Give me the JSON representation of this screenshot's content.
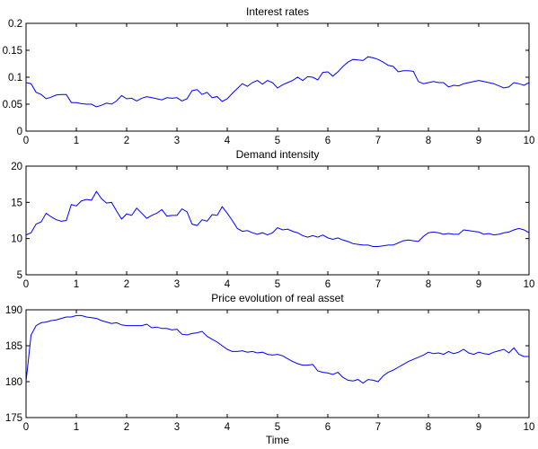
{
  "chart_data": [
    {
      "type": "line",
      "title": "Interest rates",
      "xlabel": "",
      "ylabel": "",
      "xlim": [
        0,
        10
      ],
      "ylim": [
        0,
        0.2
      ],
      "xticks": [
        0,
        1,
        2,
        3,
        4,
        5,
        6,
        7,
        8,
        9,
        10
      ],
      "yticks": [
        0,
        0.05,
        0.1,
        0.15,
        0.2
      ],
      "yticklabels": [
        "0",
        "0.05",
        "0.1",
        "0.15",
        "0.2"
      ],
      "series": [
        {
          "color": "#0000ff",
          "x": [
            0,
            0.1,
            0.2,
            0.3,
            0.4,
            0.5,
            0.6,
            0.7,
            0.8,
            0.9,
            1,
            1.1,
            1.2,
            1.3,
            1.4,
            1.5,
            1.6,
            1.7,
            1.8,
            1.9,
            2,
            2.1,
            2.2,
            2.3,
            2.4,
            2.5,
            2.6,
            2.7,
            2.8,
            2.9,
            3,
            3.1,
            3.2,
            3.3,
            3.4,
            3.5,
            3.6,
            3.7,
            3.8,
            3.9,
            4,
            4.1,
            4.2,
            4.3,
            4.4,
            4.5,
            4.6,
            4.7,
            4.8,
            4.9,
            5,
            5.1,
            5.2,
            5.3,
            5.4,
            5.5,
            5.6,
            5.7,
            5.8,
            5.9,
            6,
            6.1,
            6.2,
            6.3,
            6.4,
            6.5,
            6.6,
            6.7,
            6.8,
            6.9,
            7,
            7.1,
            7.2,
            7.3,
            7.4,
            7.5,
            7.6,
            7.7,
            7.8,
            7.9,
            8,
            8.1,
            8.2,
            8.3,
            8.4,
            8.5,
            8.6,
            8.7,
            8.8,
            8.9,
            9,
            9.1,
            9.2,
            9.3,
            9.4,
            9.5,
            9.6,
            9.7,
            9.8,
            9.9,
            10
          ],
          "values": [
            0.09,
            0.088,
            0.072,
            0.068,
            0.06,
            0.063,
            0.067,
            0.068,
            0.068,
            0.053,
            0.053,
            0.051,
            0.05,
            0.05,
            0.045,
            0.048,
            0.052,
            0.05,
            0.056,
            0.066,
            0.06,
            0.061,
            0.056,
            0.061,
            0.064,
            0.062,
            0.06,
            0.058,
            0.062,
            0.061,
            0.062,
            0.056,
            0.06,
            0.075,
            0.077,
            0.068,
            0.072,
            0.062,
            0.064,
            0.055,
            0.06,
            0.07,
            0.079,
            0.088,
            0.083,
            0.09,
            0.094,
            0.087,
            0.094,
            0.09,
            0.08,
            0.086,
            0.09,
            0.094,
            0.1,
            0.094,
            0.101,
            0.1,
            0.095,
            0.109,
            0.11,
            0.102,
            0.11,
            0.12,
            0.128,
            0.133,
            0.132,
            0.131,
            0.138,
            0.136,
            0.133,
            0.128,
            0.122,
            0.12,
            0.11,
            0.112,
            0.112,
            0.111,
            0.092,
            0.088,
            0.09,
            0.092,
            0.09,
            0.09,
            0.082,
            0.085,
            0.084,
            0.088,
            0.09,
            0.092,
            0.094,
            0.092,
            0.09,
            0.088,
            0.084,
            0.08,
            0.082,
            0.09,
            0.088,
            0.085,
            0.09
          ]
        }
      ]
    },
    {
      "type": "line",
      "title": "Demand intensity",
      "xlabel": "",
      "ylabel": "",
      "xlim": [
        0,
        10
      ],
      "ylim": [
        5,
        20
      ],
      "xticks": [
        0,
        1,
        2,
        3,
        4,
        5,
        6,
        7,
        8,
        9,
        10
      ],
      "yticks": [
        5,
        10,
        15,
        20
      ],
      "yticklabels": [
        "5",
        "10",
        "15",
        "20"
      ],
      "series": [
        {
          "color": "#0000ff",
          "x": [
            0,
            0.1,
            0.2,
            0.3,
            0.4,
            0.5,
            0.6,
            0.7,
            0.8,
            0.9,
            1,
            1.1,
            1.2,
            1.3,
            1.4,
            1.5,
            1.6,
            1.7,
            1.8,
            1.9,
            2,
            2.1,
            2.2,
            2.3,
            2.4,
            2.5,
            2.6,
            2.7,
            2.8,
            2.9,
            3,
            3.1,
            3.2,
            3.3,
            3.4,
            3.5,
            3.6,
            3.7,
            3.8,
            3.9,
            4,
            4.1,
            4.2,
            4.3,
            4.4,
            4.5,
            4.6,
            4.7,
            4.8,
            4.9,
            5,
            5.1,
            5.2,
            5.3,
            5.4,
            5.5,
            5.6,
            5.7,
            5.8,
            5.9,
            6,
            6.1,
            6.2,
            6.3,
            6.4,
            6.5,
            6.6,
            6.7,
            6.8,
            6.9,
            7,
            7.1,
            7.2,
            7.3,
            7.4,
            7.5,
            7.6,
            7.7,
            7.8,
            7.9,
            8,
            8.1,
            8.2,
            8.3,
            8.4,
            8.5,
            8.6,
            8.7,
            8.8,
            8.9,
            9,
            9.1,
            9.2,
            9.3,
            9.4,
            9.5,
            9.6,
            9.7,
            9.8,
            9.9,
            10
          ],
          "values": [
            10.5,
            10.8,
            12,
            12.3,
            13.5,
            13,
            12.6,
            12.4,
            12.5,
            14.7,
            14.5,
            15.2,
            15.4,
            15.3,
            16.5,
            15.5,
            14.9,
            15,
            13.8,
            12.7,
            13.4,
            13.2,
            14.2,
            13.5,
            12.8,
            13.2,
            13.5,
            14,
            13.1,
            13.2,
            13.2,
            14.1,
            13.7,
            12,
            11.8,
            12.6,
            12.4,
            13.3,
            13.2,
            14.4,
            13.5,
            12.5,
            11.4,
            11,
            11.1,
            10.8,
            10.6,
            10.8,
            10.5,
            10.8,
            11.5,
            11.2,
            11.3,
            11,
            10.8,
            10.4,
            10.2,
            10.4,
            10.2,
            10.5,
            10.1,
            9.9,
            10.1,
            9.8,
            9.6,
            9.3,
            9.2,
            9.1,
            9.1,
            8.9,
            8.9,
            9,
            9.1,
            9.1,
            9.4,
            9.7,
            9.8,
            9.7,
            9.6,
            10.3,
            10.8,
            10.9,
            10.8,
            10.6,
            10.7,
            10.6,
            10.6,
            11.2,
            11.1,
            11,
            10.9,
            10.6,
            10.7,
            10.5,
            10.6,
            10.8,
            10.9,
            11.2,
            11.4,
            11.2,
            10.8
          ]
        }
      ]
    },
    {
      "type": "line",
      "title": "Price evolution of real asset",
      "xlabel": "Time",
      "ylabel": "",
      "xlim": [
        0,
        10
      ],
      "ylim": [
        175,
        190
      ],
      "xticks": [
        0,
        1,
        2,
        3,
        4,
        5,
        6,
        7,
        8,
        9,
        10
      ],
      "yticks": [
        175,
        180,
        185,
        190
      ],
      "yticklabels": [
        "175",
        "180",
        "185",
        "190"
      ],
      "series": [
        {
          "color": "#0000ff",
          "x": [
            0,
            0.1,
            0.2,
            0.3,
            0.4,
            0.5,
            0.6,
            0.7,
            0.8,
            0.9,
            1,
            1.1,
            1.2,
            1.3,
            1.4,
            1.5,
            1.6,
            1.7,
            1.8,
            1.9,
            2,
            2.1,
            2.2,
            2.3,
            2.4,
            2.5,
            2.6,
            2.7,
            2.8,
            2.9,
            3,
            3.1,
            3.2,
            3.3,
            3.4,
            3.5,
            3.6,
            3.7,
            3.8,
            3.9,
            4,
            4.1,
            4.2,
            4.3,
            4.4,
            4.5,
            4.6,
            4.7,
            4.8,
            4.9,
            5,
            5.1,
            5.2,
            5.3,
            5.4,
            5.5,
            5.6,
            5.7,
            5.8,
            5.9,
            6,
            6.1,
            6.2,
            6.3,
            6.4,
            6.5,
            6.6,
            6.7,
            6.8,
            6.9,
            7,
            7.1,
            7.2,
            7.3,
            7.4,
            7.5,
            7.6,
            7.7,
            7.8,
            7.9,
            8,
            8.1,
            8.2,
            8.3,
            8.4,
            8.5,
            8.6,
            8.7,
            8.8,
            8.9,
            9,
            9.1,
            9.2,
            9.3,
            9.4,
            9.5,
            9.6,
            9.7,
            9.8,
            9.9,
            10
          ],
          "values": [
            180,
            186.5,
            187.8,
            188.2,
            188.3,
            188.5,
            188.6,
            188.8,
            189,
            189,
            189.2,
            189.2,
            189,
            188.9,
            188.8,
            188.5,
            188.3,
            188.1,
            188.2,
            187.9,
            187.8,
            187.8,
            187.8,
            187.8,
            188,
            187.5,
            187.6,
            187.4,
            187.4,
            187.2,
            187.3,
            186.6,
            186.5,
            186.7,
            186.8,
            187,
            186.3,
            185.9,
            185.5,
            185,
            184.5,
            184.2,
            184.2,
            184.3,
            184.1,
            184.2,
            184,
            184.1,
            183.8,
            183.7,
            183.8,
            183.6,
            183.2,
            182.8,
            182.5,
            182.3,
            182.3,
            182.4,
            181.5,
            181.3,
            181.2,
            181,
            181.3,
            180.6,
            180.2,
            180.1,
            180.3,
            179.8,
            180.3,
            180.2,
            180,
            180.8,
            181.3,
            181.6,
            182,
            182.4,
            182.8,
            183.1,
            183.4,
            183.7,
            184.1,
            183.9,
            184,
            183.8,
            184.2,
            183.9,
            184.1,
            184.5,
            184,
            183.8,
            184.1,
            183.9,
            183.8,
            184.1,
            184.3,
            184.5,
            184,
            184.7,
            183.8,
            183.5,
            183.5
          ]
        }
      ]
    }
  ]
}
